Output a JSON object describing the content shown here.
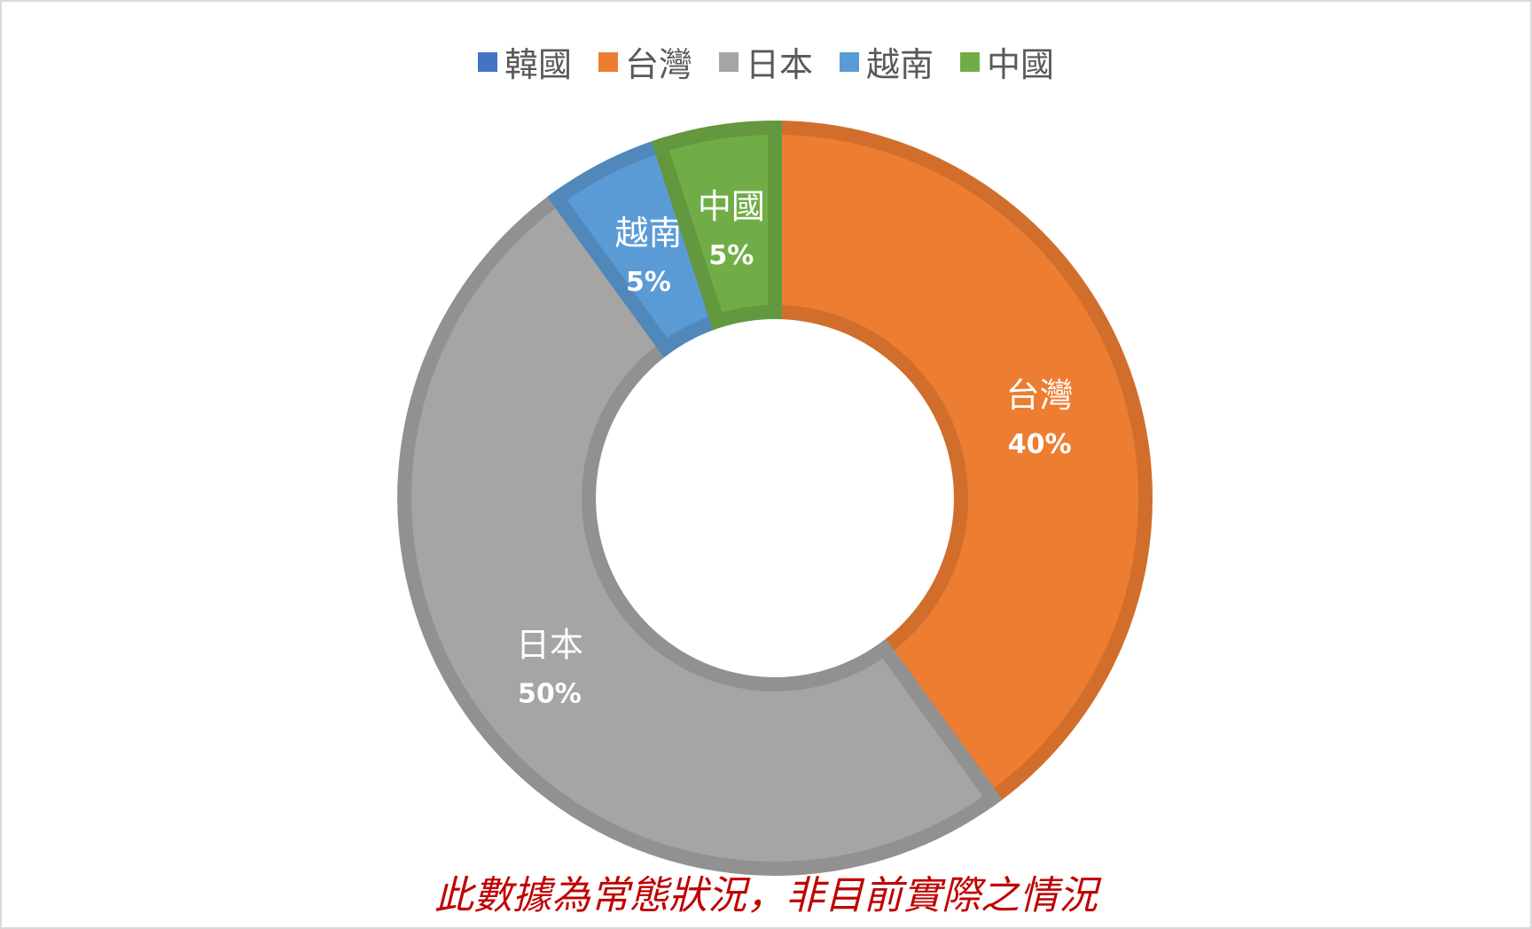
{
  "chart_data": {
    "type": "pie",
    "variant": "donut",
    "legend_position": "top",
    "categories": [
      "韓國",
      "台灣",
      "日本",
      "越南",
      "中國"
    ],
    "values": [
      0,
      40,
      50,
      5,
      5
    ],
    "data_labels": [
      "",
      "40%",
      "50%",
      "5%",
      "5%"
    ],
    "colors": [
      "#4472c4",
      "#ed7d31",
      "#a5a5a5",
      "#5b9bd5",
      "#70ad47"
    ]
  },
  "footnote": "此數據為常態狀況，非目前實際之情況"
}
